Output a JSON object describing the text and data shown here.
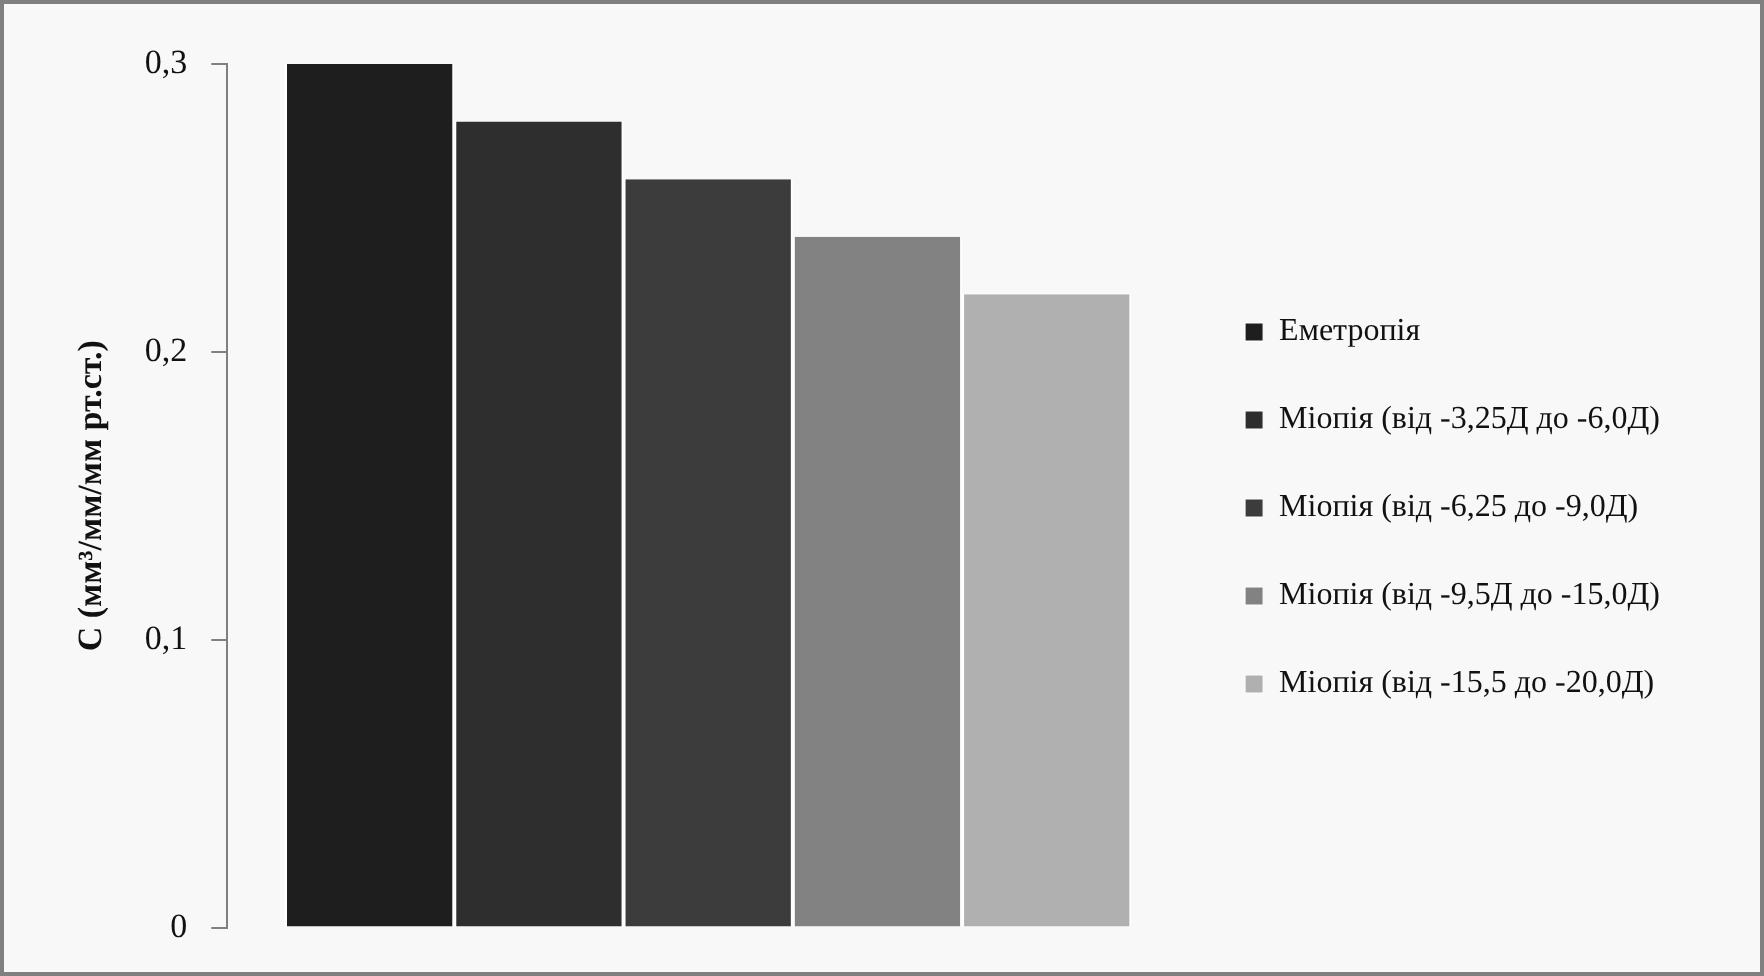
{
  "chart_data": {
    "type": "bar",
    "ylabel": "C (мм³/мм/мм рт.ст.)",
    "categories": [
      null
    ],
    "series": [
      {
        "name": "Еметропія",
        "color": "#1e1e1e",
        "values": [
          0.3
        ]
      },
      {
        "name": "Міопія (від -3,25Д до -6,0Д)",
        "color": "#2e2e2e",
        "values": [
          0.28
        ]
      },
      {
        "name": "Міопія (від -6,25 до -9,0Д)",
        "color": "#3c3c3c",
        "values": [
          0.26
        ]
      },
      {
        "name": "Міопія (від -9,5Д до -15,0Д)",
        "color": "#828282",
        "values": [
          0.24
        ]
      },
      {
        "name": "Міопія (від -15,5 до -20,0Д)",
        "color": "#b0b0b0",
        "values": [
          0.22
        ]
      }
    ],
    "ylim": [
      0,
      0.3
    ],
    "yticks": [
      0,
      {
        "value": 0.1,
        "label": "0,1"
      },
      {
        "value": 0.2,
        "label": "0,2"
      },
      {
        "value": 0.3,
        "label": "0,3"
      }
    ],
    "grid": false,
    "legend": "right"
  }
}
